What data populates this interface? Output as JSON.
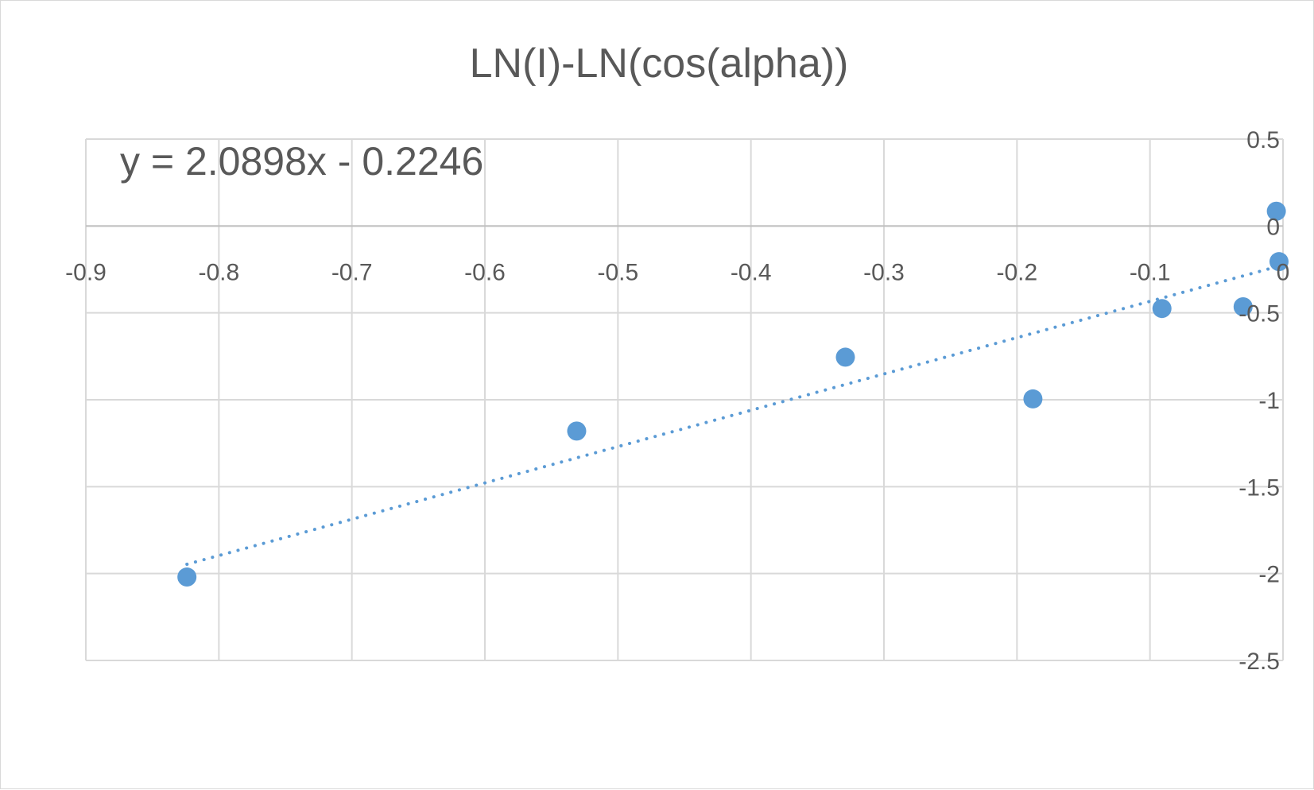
{
  "chart_data": {
    "type": "scatter",
    "title": "LN(I)-LN(cos(alpha))",
    "xlabel": "",
    "ylabel": "",
    "xlim": [
      -0.9,
      0
    ],
    "ylim": [
      -2.5,
      0.5
    ],
    "x_ticks": [
      -0.9,
      -0.8,
      -0.7,
      -0.6,
      -0.5,
      -0.4,
      -0.3,
      -0.2,
      -0.1,
      0
    ],
    "y_ticks": [
      0.5,
      0,
      -0.5,
      -1,
      -1.5,
      -2,
      -2.5
    ],
    "x_tick_labels": [
      "-0.9",
      "-0.8",
      "-0.7",
      "-0.6",
      "-0.5",
      "-0.4",
      "-0.3",
      "-0.2",
      "-0.1",
      "0"
    ],
    "y_tick_labels": [
      "0.5",
      "0",
      "-0.5",
      "-1",
      "-1.5",
      "-2",
      "-2.5"
    ],
    "grid": true,
    "legend": false,
    "colors": {
      "points": "#5b9bd5",
      "trendline": "#5b9bd5",
      "grid": "#d9d9d9",
      "text": "#595959"
    },
    "series": [
      {
        "points": [
          {
            "x": -0.824,
            "y": -2.02
          },
          {
            "x": -0.531,
            "y": -1.18
          },
          {
            "x": -0.329,
            "y": -0.755
          },
          {
            "x": -0.188,
            "y": -0.995
          },
          {
            "x": -0.091,
            "y": -0.475
          },
          {
            "x": -0.03,
            "y": -0.465
          },
          {
            "x": -0.005,
            "y": 0.085
          },
          {
            "x": -0.003,
            "y": -0.205
          }
        ]
      }
    ],
    "trendline": {
      "type": "linear",
      "slope": 2.0898,
      "intercept": -0.2246,
      "x_range": [
        -0.824,
        0
      ],
      "style": "dotted",
      "equation_label": "y = 2.0898x - 0.2246"
    }
  }
}
